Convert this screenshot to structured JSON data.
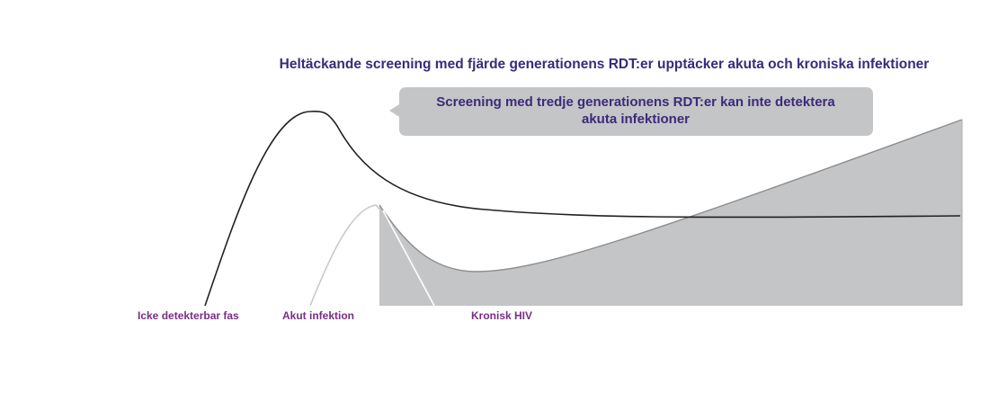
{
  "title": "Heltäckande screening med fjärde generationens RDT:er upptäcker akuta och kroniska infektioner",
  "callout": {
    "line1": "Screening med tredje generationens RDT:er kan inte detektera",
    "line2": "akuta infektioner"
  },
  "phases": {
    "undetectable": "Icke detekterbar fas",
    "acute": "Akut infektion",
    "chronic": "Kronisk HIV"
  },
  "colors": {
    "title": "#3b2a7a",
    "phase_label": "#7a2d86",
    "shaded_region": "#c4c5c7",
    "callout_box": "#c4c5c7",
    "fourth_gen_curve": "#222026",
    "third_gen_curve": "#8c8c8e",
    "early_curve": "#bdbdbd"
  }
}
